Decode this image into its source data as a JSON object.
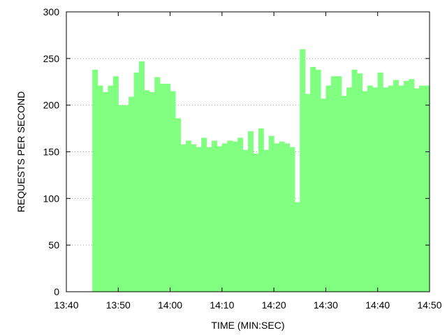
{
  "chart_data": {
    "type": "bar",
    "title": "",
    "xlabel": "TIME (MIN:SEC)",
    "ylabel": "REQUESTS PER SECOND",
    "xlim": [
      "13:40",
      "14:50"
    ],
    "ylim": [
      0,
      300
    ],
    "x_ticks": [
      "13:40",
      "13:50",
      "14:00",
      "14:10",
      "14:20",
      "14:30",
      "14:40",
      "14:50"
    ],
    "y_ticks": [
      "0",
      "50",
      "100",
      "150",
      "200",
      "250",
      "300"
    ],
    "grid": "horizontal dotted",
    "bar_color": "#80ff80",
    "series": [
      {
        "x": [
          "13:45",
          "13:46",
          "13:47",
          "13:48",
          "13:49",
          "13:50",
          "13:51",
          "13:52",
          "13:53",
          "13:54",
          "13:55",
          "13:56",
          "13:57",
          "13:58",
          "13:59",
          "14:00",
          "14:01",
          "14:02",
          "14:03",
          "14:04",
          "14:05",
          "14:06",
          "14:07",
          "14:08",
          "14:09",
          "14:10",
          "14:11",
          "14:12",
          "14:13",
          "14:14",
          "14:15",
          "14:16",
          "14:17",
          "14:18",
          "14:19",
          "14:20",
          "14:21",
          "14:22",
          "14:23",
          "14:24",
          "14:25",
          "14:26",
          "14:27",
          "14:28",
          "14:29",
          "14:30",
          "14:31",
          "14:32",
          "14:33",
          "14:34",
          "14:35",
          "14:36",
          "14:37",
          "14:38",
          "14:39",
          "14:40",
          "14:41",
          "14:42",
          "14:43",
          "14:44",
          "14:45",
          "14:46",
          "14:47",
          "14:48",
          "14:49"
        ],
        "values": [
          238,
          221,
          214,
          221,
          231,
          200,
          200,
          209,
          235,
          247,
          216,
          214,
          230,
          223,
          223,
          215,
          186,
          158,
          162,
          158,
          155,
          165,
          155,
          162,
          156,
          159,
          162,
          161,
          165,
          152,
          172,
          148,
          175,
          152,
          167,
          159,
          161,
          159,
          155,
          96,
          260,
          212,
          241,
          238,
          207,
          221,
          231,
          231,
          210,
          219,
          238,
          234,
          215,
          221,
          219,
          235,
          219,
          221,
          227,
          221,
          226,
          228,
          218,
          221,
          221
        ]
      }
    ]
  }
}
